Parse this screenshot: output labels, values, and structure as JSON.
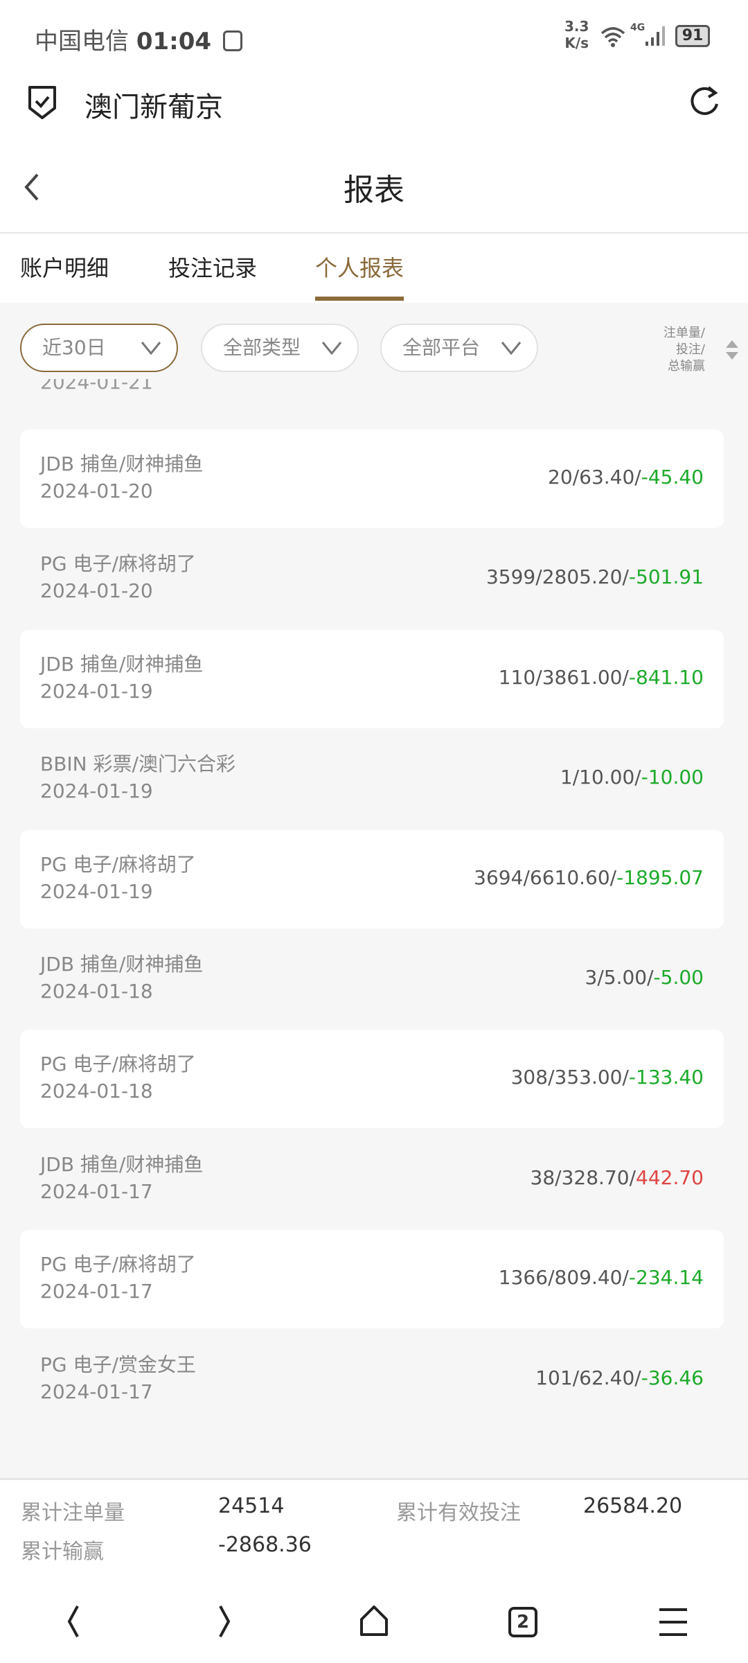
{
  "status_bar": {
    "carrier": "中国电信",
    "time": "01:04",
    "speed_value": "3.3",
    "speed_unit": "K/s",
    "network": "4G",
    "battery": "91"
  },
  "app_bar": {
    "title": "澳门新葡京",
    "icons": [
      "shield-check-icon",
      "refresh-icon"
    ]
  },
  "header": {
    "title": "报表"
  },
  "tabs": [
    {
      "label": "账户明细"
    },
    {
      "label": "投注记录"
    },
    {
      "label": "个人报表",
      "active": true
    }
  ],
  "filters": [
    {
      "label": "近30日",
      "active": true
    },
    {
      "label": "全部类型"
    },
    {
      "label": "全部平台"
    }
  ],
  "sort": {
    "line1": "注单量/",
    "line2": "投注/",
    "line3": "总输赢"
  },
  "partial_date": "2024-01-21",
  "rows": [
    {
      "name": "JDB 捕鱼/财神捕鱼",
      "date": "2024-01-20",
      "count": "20",
      "bet": "63.40",
      "win": "-45.40"
    },
    {
      "name": "PG 电子/麻将胡了",
      "date": "2024-01-20",
      "count": "3599",
      "bet": "2805.20",
      "win": "-501.91"
    },
    {
      "name": "JDB 捕鱼/财神捕鱼",
      "date": "2024-01-19",
      "count": "110",
      "bet": "3861.00",
      "win": "-841.10"
    },
    {
      "name": "BBIN 彩票/澳门六合彩",
      "date": "2024-01-19",
      "count": "1",
      "bet": "10.00",
      "win": "-10.00"
    },
    {
      "name": "PG 电子/麻将胡了",
      "date": "2024-01-19",
      "count": "3694",
      "bet": "6610.60",
      "win": "-1895.07"
    },
    {
      "name": "JDB 捕鱼/财神捕鱼",
      "date": "2024-01-18",
      "count": "3",
      "bet": "5.00",
      "win": "-5.00"
    },
    {
      "name": "PG 电子/麻将胡了",
      "date": "2024-01-18",
      "count": "308",
      "bet": "353.00",
      "win": "-133.40"
    },
    {
      "name": "JDB 捕鱼/财神捕鱼",
      "date": "2024-01-17",
      "count": "38",
      "bet": "328.70",
      "win": "442.70"
    },
    {
      "name": "PG 电子/麻将胡了",
      "date": "2024-01-17",
      "count": "1366",
      "bet": "809.40",
      "win": "-234.14"
    },
    {
      "name": "PG 电子/赏金女王",
      "date": "2024-01-17",
      "count": "101",
      "bet": "62.40",
      "win": "-36.46"
    }
  ],
  "footer": {
    "total_count_label": "累计注单量",
    "total_count": "24514",
    "total_bet_label": "累计有效投注",
    "total_bet": "26584.20",
    "total_win_label": "累计输赢",
    "total_win": "-2868.36"
  },
  "navbar": {
    "tab_count": "2"
  },
  "colors": {
    "accent": "#8a6a3a",
    "loss": "#1daa2a",
    "win": "#e04444"
  }
}
